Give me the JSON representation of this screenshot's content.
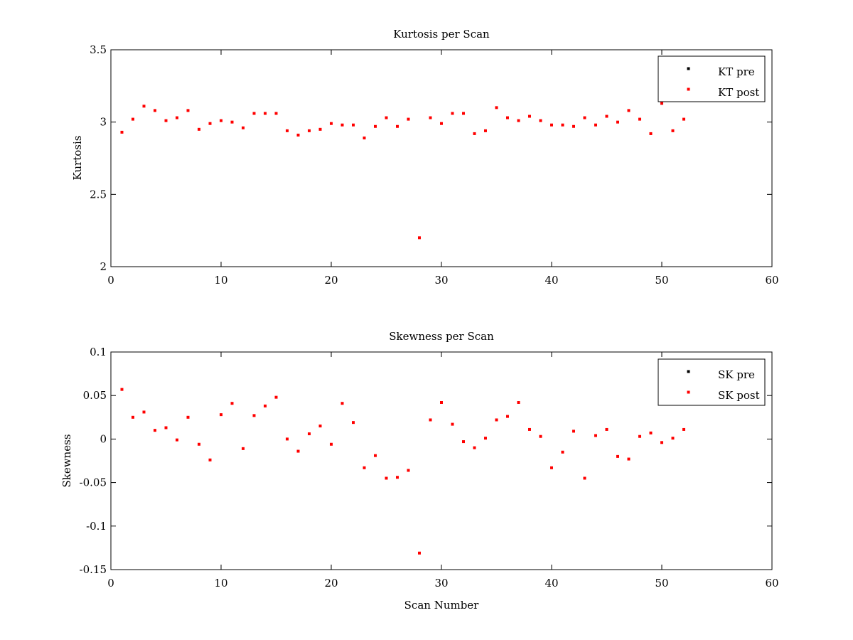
{
  "chart_data": [
    {
      "type": "scatter",
      "title": "Kurtosis per Scan",
      "xlabel": "",
      "ylabel": "Kurtosis",
      "xlim": [
        0,
        60
      ],
      "ylim": [
        2,
        3.5
      ],
      "xticks": [
        "0",
        "10",
        "20",
        "30",
        "40",
        "50",
        "60"
      ],
      "yticks": [
        "2",
        "2.5",
        "3",
        "3.5"
      ],
      "grid": false,
      "legend": "top-right",
      "series": [
        {
          "name": "KT pre",
          "color": "#000000",
          "x": [
            50
          ],
          "y": [
            3.13
          ]
        },
        {
          "name": "KT post",
          "color": "#ff0000",
          "x": [
            1,
            2,
            3,
            4,
            5,
            6,
            7,
            8,
            9,
            10,
            11,
            12,
            13,
            14,
            15,
            16,
            17,
            18,
            19,
            20,
            21,
            22,
            23,
            24,
            25,
            26,
            27,
            28,
            29,
            30,
            31,
            32,
            33,
            34,
            35,
            36,
            37,
            38,
            39,
            40,
            41,
            42,
            43,
            44,
            45,
            46,
            47,
            48,
            49,
            50,
            51,
            52
          ],
          "y": [
            2.93,
            3.02,
            3.11,
            3.08,
            3.01,
            3.03,
            3.08,
            2.95,
            2.99,
            3.01,
            3.0,
            2.96,
            3.06,
            3.06,
            3.06,
            2.94,
            2.91,
            2.94,
            2.95,
            2.99,
            2.98,
            2.98,
            2.89,
            2.97,
            3.03,
            2.97,
            3.02,
            2.2,
            3.03,
            2.99,
            3.06,
            3.06,
            2.92,
            2.94,
            3.1,
            3.03,
            3.01,
            3.04,
            3.01,
            2.98,
            2.98,
            2.97,
            3.03,
            2.98,
            3.04,
            3.0,
            3.08,
            3.02,
            2.92,
            3.13,
            2.94,
            3.02
          ]
        }
      ]
    },
    {
      "type": "scatter",
      "title": "Skewness per Scan",
      "xlabel": "Scan Number",
      "ylabel": "Skewness",
      "xlim": [
        0,
        60
      ],
      "ylim": [
        -0.15,
        0.1
      ],
      "xticks": [
        "0",
        "10",
        "20",
        "30",
        "40",
        "50",
        "60"
      ],
      "yticks": [
        "-0.15",
        "-0.1",
        "-0.05",
        "0",
        "0.05",
        "0.1"
      ],
      "grid": false,
      "legend": "top-right",
      "series": [
        {
          "name": "SK pre",
          "color": "#000000",
          "x": [],
          "y": []
        },
        {
          "name": "SK post",
          "color": "#ff0000",
          "x": [
            1,
            2,
            3,
            4,
            5,
            6,
            7,
            8,
            9,
            10,
            11,
            12,
            13,
            14,
            15,
            16,
            17,
            18,
            19,
            20,
            21,
            22,
            23,
            24,
            25,
            26,
            27,
            28,
            29,
            30,
            31,
            32,
            33,
            34,
            35,
            36,
            37,
            38,
            39,
            40,
            41,
            42,
            43,
            44,
            45,
            46,
            47,
            48,
            49,
            50,
            51,
            52
          ],
          "y": [
            0.057,
            0.025,
            0.031,
            0.01,
            0.013,
            -0.001,
            0.025,
            -0.006,
            -0.024,
            0.028,
            0.041,
            -0.011,
            0.027,
            0.038,
            0.048,
            0.0,
            -0.014,
            0.006,
            0.015,
            -0.006,
            0.041,
            0.019,
            -0.033,
            -0.019,
            -0.045,
            -0.044,
            -0.036,
            -0.131,
            0.022,
            0.042,
            0.017,
            -0.003,
            -0.01,
            0.001,
            0.022,
            0.026,
            0.042,
            0.011,
            0.003,
            -0.033,
            -0.015,
            0.009,
            -0.045,
            0.004,
            0.011,
            -0.02,
            -0.023,
            0.003,
            0.007,
            -0.004,
            0.001,
            0.011
          ]
        }
      ]
    }
  ]
}
